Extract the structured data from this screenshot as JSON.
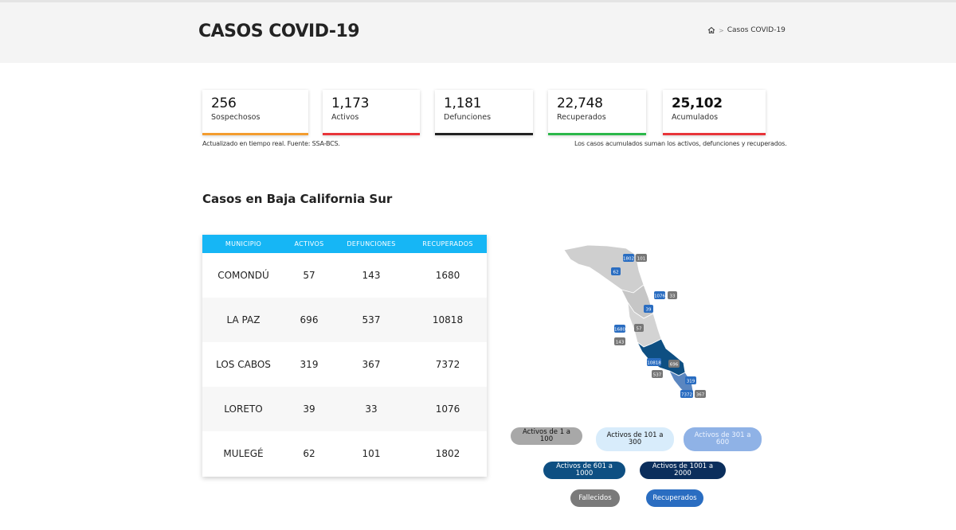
{
  "header": {
    "title": "CASOS COVID-19",
    "breadcrumb": {
      "current": "Casos COVID-19"
    }
  },
  "stats": [
    {
      "value": "256",
      "label": "Sospechosos",
      "color": "#f39c2f"
    },
    {
      "value": "1,173",
      "label": "Activos",
      "color": "#e8353a"
    },
    {
      "value": "1,181",
      "label": "Defunciones",
      "color": "#222222"
    },
    {
      "value": "22,748",
      "label": "Recuperados",
      "color": "#2cb84a"
    },
    {
      "value": "25,102",
      "label": "Acumulados",
      "color": "#e8353a"
    }
  ],
  "notes": {
    "left": "Actualizado en tiempo real. Fuente: SSA-BCS.",
    "right": "Los casos acumulados suman los activos, defunciones y recuperados."
  },
  "section_title": "Casos en Baja California Sur",
  "table": {
    "headers": [
      "MUNICIPIO",
      "ACTIVOS",
      "DEFUNCIONES",
      "RECUPERADOS"
    ],
    "rows": [
      [
        "COMONDÚ",
        "57",
        "143",
        "1680"
      ],
      [
        "LA PAZ",
        "696",
        "537",
        "10818"
      ],
      [
        "LOS CABOS",
        "319",
        "367",
        "7372"
      ],
      [
        "LORETO",
        "39",
        "33",
        "1076"
      ],
      [
        "MULEGÉ",
        "62",
        "101",
        "1802"
      ]
    ]
  },
  "map": {
    "labels": {
      "mulege_rec": "1802",
      "mulege_def": "101",
      "mulege_act": "62",
      "loreto_rec": "1076",
      "loreto_def": "33",
      "loreto_act": "39",
      "comondu_rec": "1680",
      "comondu_act": "57",
      "comondu_def": "143",
      "lapaz_rec": "10818",
      "lapaz_act": "696",
      "lapaz_def": "537",
      "cabos_act": "319",
      "cabos_rec": "7372",
      "cabos_def": "367"
    },
    "colors": {
      "gray": "#cfcfcf",
      "dark_blue": "#0e4f82",
      "navy": "#0b3a66",
      "label_gray": "#777777",
      "label_blue": "#2a6dc1"
    }
  },
  "legend": {
    "a1": "Activos de 1 a 100",
    "a2": "Activos de 101 a 300",
    "a3": "Activos de 301 a 600",
    "a4": "Activos de 601 a 1000",
    "a5": "Activos de 1001 a 2000",
    "fallecidos": "Fallecidos",
    "recuperados": "Recuperados"
  }
}
